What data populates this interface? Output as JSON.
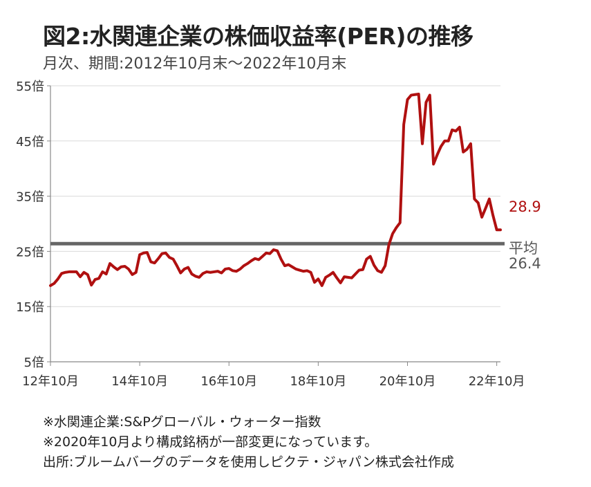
{
  "title": "図2:水関連企業の株価収益率(PER)の推移",
  "subtitle": "月次、期間:2012年10月末～2022年10月末",
  "notes": [
    "※水関連企業:S&Pグローバル・ウォーター指数",
    "※2020年10月より構成銘柄が一部変更になっています。",
    "出所:ブルームバーグのデータを使用しピクテ・ジャパン株式会社作成"
  ],
  "colors": {
    "series": "#b01010",
    "average": "#666666",
    "axis": "#888888",
    "grid": "#d9d9d9"
  },
  "chart_data": {
    "type": "line",
    "x_unit": "month",
    "x_start": "2012-10",
    "x_end": "2022-10",
    "ylim": [
      5,
      55
    ],
    "yticks": [
      5,
      15,
      25,
      35,
      45,
      55
    ],
    "ytick_labels": [
      "5倍",
      "15倍",
      "25倍",
      "35倍",
      "45倍",
      "55倍"
    ],
    "xtick_labels": [
      "12年10月",
      "14年10月",
      "16年10月",
      "18年10月",
      "20年10月",
      "22年10月"
    ],
    "grid": true,
    "series": [
      {
        "values": [
          18.8,
          19.2,
          20,
          21,
          21.2,
          21.3,
          21.3,
          21.3,
          20.4,
          21.2,
          20.8,
          18.9,
          19.9,
          20.1,
          21.3,
          20.9,
          22.8,
          22.2,
          21.7,
          22.2,
          22.3,
          21.8,
          20.8,
          21.2,
          24.4,
          24.7,
          24.8,
          23.1,
          22.9,
          23.7,
          24.6,
          24.7,
          23.9,
          23.6,
          22.4,
          21.1,
          21.8,
          22.1,
          20.9,
          20.5,
          20.3,
          21,
          21.3,
          21.2,
          21.3,
          21.4,
          21.1,
          21.8,
          21.9,
          21.5,
          21.4,
          21.8,
          22.4,
          22.8,
          23.3,
          23.7,
          23.5,
          24.1,
          24.7,
          24.6,
          25.3,
          25.1,
          23.6,
          22.4,
          22.6,
          22.2,
          21.8,
          21.6,
          21.4,
          21.5,
          21.2,
          19.4,
          20,
          18.8,
          20.3,
          20.7,
          21.2,
          20.2,
          19.3,
          20.4,
          20.3,
          20.2,
          20.9,
          21.6,
          21.7,
          23.6,
          24.1,
          22.5,
          21.5,
          21.2,
          22.4,
          26.2,
          28.2,
          29.3,
          30.2,
          48,
          52.5,
          53.3,
          53.4,
          53.5,
          44.5,
          52,
          53.3,
          40.8,
          42.5,
          44,
          45,
          45,
          47,
          46.8,
          47.5,
          43,
          43.5,
          44.5,
          34.5,
          33.8,
          31.2,
          32.8,
          34.5,
          31.5,
          28.9,
          28.9
        ],
        "end_label": "28.9"
      }
    ],
    "average": {
      "value": 26.4,
      "label_line1": "平均",
      "label_line2": "26.4"
    }
  }
}
